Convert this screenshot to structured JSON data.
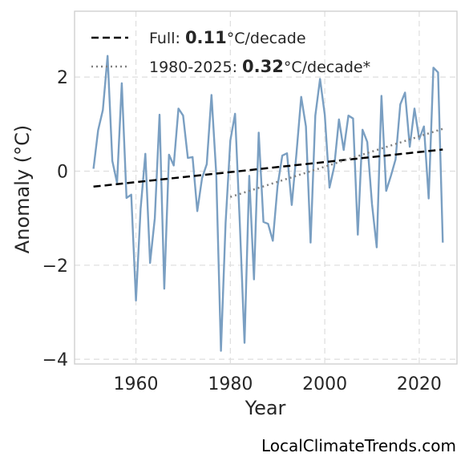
{
  "chart_data": {
    "type": "line",
    "xlabel": "Year",
    "ylabel": "Anomaly (°C)",
    "xlim": [
      1947,
      2028
    ],
    "ylim": [
      -4.1,
      3.4
    ],
    "xticks": [
      1960,
      1980,
      2000,
      2020
    ],
    "yticks": [
      -4,
      -2,
      0,
      2
    ],
    "grid": true,
    "legend_position": "top-left",
    "series": [
      {
        "style": "solid",
        "color": "#7a9fc2",
        "x": [
          1951,
          1952,
          1953,
          1954,
          1955,
          1956,
          1957,
          1958,
          1959,
          1960,
          1961,
          1962,
          1963,
          1964,
          1965,
          1966,
          1967,
          1968,
          1969,
          1970,
          1971,
          1972,
          1973,
          1974,
          1975,
          1976,
          1977,
          1978,
          1979,
          1980,
          1981,
          1982,
          1983,
          1984,
          1985,
          1986,
          1987,
          1988,
          1989,
          1990,
          1991,
          1992,
          1993,
          1994,
          1995,
          1996,
          1997,
          1998,
          1999,
          2000,
          2001,
          2002,
          2003,
          2004,
          2005,
          2006,
          2007,
          2008,
          2009,
          2010,
          2011,
          2012,
          2013,
          2014,
          2015,
          2016,
          2017,
          2018,
          2019,
          2020,
          2021,
          2022,
          2023,
          2024,
          2025
        ],
        "values": [
          0.05,
          0.87,
          1.3,
          2.45,
          0.22,
          -0.25,
          1.87,
          -0.57,
          -0.5,
          -2.75,
          -0.8,
          0.37,
          -1.95,
          -1.0,
          1.2,
          -2.5,
          0.35,
          0.12,
          1.33,
          1.18,
          0.28,
          0.3,
          -0.85,
          -0.15,
          0.15,
          1.62,
          -0.05,
          -3.82,
          -1.1,
          0.65,
          1.22,
          -1.1,
          -3.65,
          -0.1,
          -2.3,
          0.82,
          -1.08,
          -1.12,
          -1.48,
          -0.32,
          0.33,
          0.38,
          -0.72,
          0.38,
          1.58,
          0.95,
          -1.52,
          1.18,
          1.96,
          1.2,
          -0.35,
          0.1,
          1.1,
          0.45,
          1.18,
          1.12,
          -1.35,
          0.88,
          0.62,
          -0.7,
          -1.62,
          1.6,
          -0.42,
          -0.1,
          0.25,
          1.42,
          1.67,
          0.52,
          1.33,
          0.68,
          0.95,
          -0.58,
          2.2,
          2.1,
          -1.52
        ]
      },
      {
        "style": "dashed",
        "color": "#000000",
        "x": [
          1951,
          2025
        ],
        "values": [
          -0.33,
          0.46
        ]
      },
      {
        "style": "dotted",
        "color": "#808080",
        "x": [
          1980,
          2025
        ],
        "values": [
          -0.55,
          0.9
        ]
      }
    ]
  },
  "legend": {
    "full_prefix": "Full: ",
    "full_value": "0.11",
    "full_suffix": "°C/decade",
    "recent_prefix": "1980-2025: ",
    "recent_value": "0.32",
    "recent_suffix": "°C/decade*"
  },
  "watermark": "LocalClimateTrends.com"
}
